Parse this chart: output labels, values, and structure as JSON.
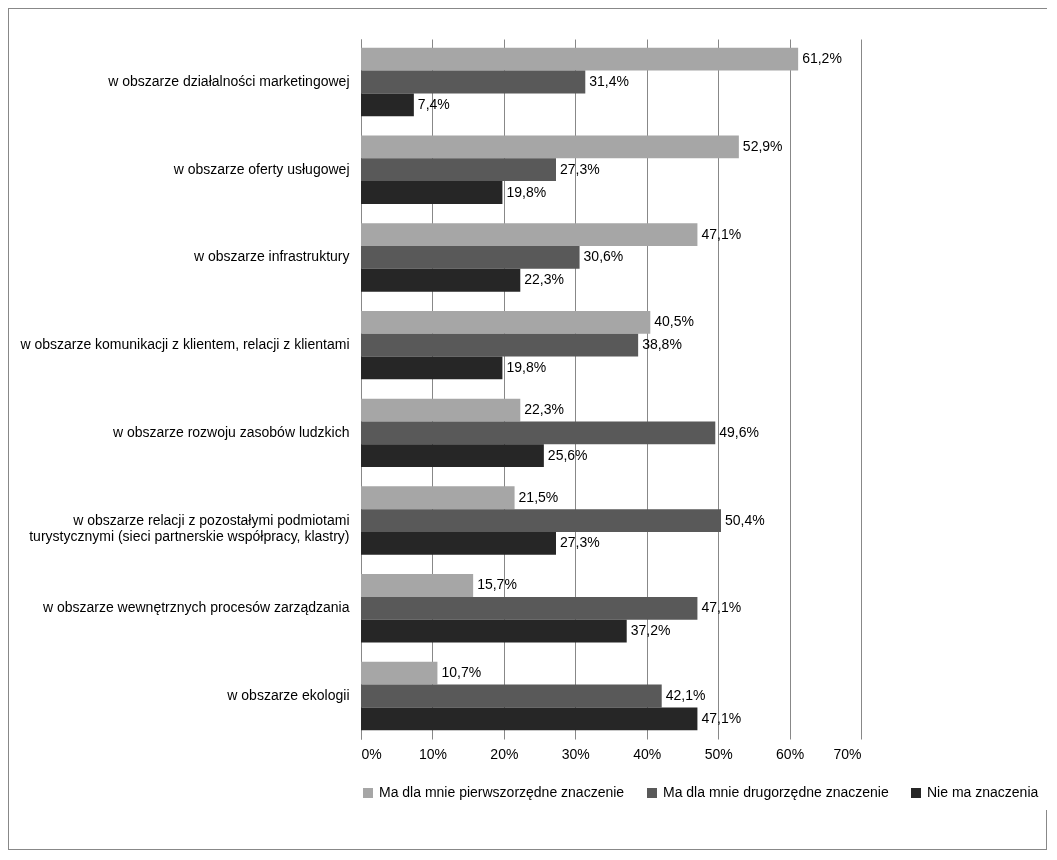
{
  "chart_data": {
    "type": "bar",
    "orientation": "horizontal",
    "categories": [
      "w obszarze działalności marketingowej",
      "w obszarze oferty usługowej",
      "w obszarze infrastruktury",
      "w obszarze komunikacji z klientem, relacji z klientami",
      "w obszarze rozwoju zasobów ludzkich",
      "w obszarze relacji z pozostałymi podmiotami turystycznymi (sieci partnerskie współpracy, klastry)",
      "w obszarze wewnętrznych procesów zarządzania",
      "w obszarze ekologii"
    ],
    "series": [
      {
        "name": "Ma dla mnie pierwszorzędne znaczenie",
        "color": "#a6a6a6",
        "values": [
          61.2,
          52.9,
          47.1,
          40.5,
          22.3,
          21.5,
          15.7,
          10.7
        ],
        "value_labels": [
          "61,2%",
          "52,9%",
          "47,1%",
          "40,5%",
          "22,3%",
          "21,5%",
          "15,7%",
          "10,7%"
        ]
      },
      {
        "name": "Ma dla mnie drugorzędne znaczenie",
        "color": "#595959",
        "values": [
          31.4,
          27.3,
          30.6,
          38.8,
          49.6,
          50.4,
          47.1,
          42.1
        ],
        "value_labels": [
          "31,4%",
          "27,3%",
          "30,6%",
          "38,8%",
          "49,6%",
          "50,4%",
          "47,1%",
          "42,1%"
        ]
      },
      {
        "name": "Nie ma znaczenia",
        "color": "#262626",
        "values": [
          7.4,
          19.8,
          22.3,
          19.8,
          25.6,
          27.3,
          37.2,
          47.1
        ],
        "value_labels": [
          "7,4%",
          "19,8%",
          "22,3%",
          "19,8%",
          "25,6%",
          "27,3%",
          "37,2%",
          "47,1%"
        ]
      }
    ],
    "xlim": [
      0,
      70
    ],
    "xticks": [
      {
        "value": 0,
        "label": "0%"
      },
      {
        "value": 10,
        "label": "10%"
      },
      {
        "value": 20,
        "label": "20%"
      },
      {
        "value": 30,
        "label": "30%"
      },
      {
        "value": 40,
        "label": "40%"
      },
      {
        "value": 50,
        "label": "50%"
      },
      {
        "value": 60,
        "label": "60%"
      },
      {
        "value": 70,
        "label": "70%"
      }
    ],
    "grid": true,
    "legend": "bottom"
  }
}
